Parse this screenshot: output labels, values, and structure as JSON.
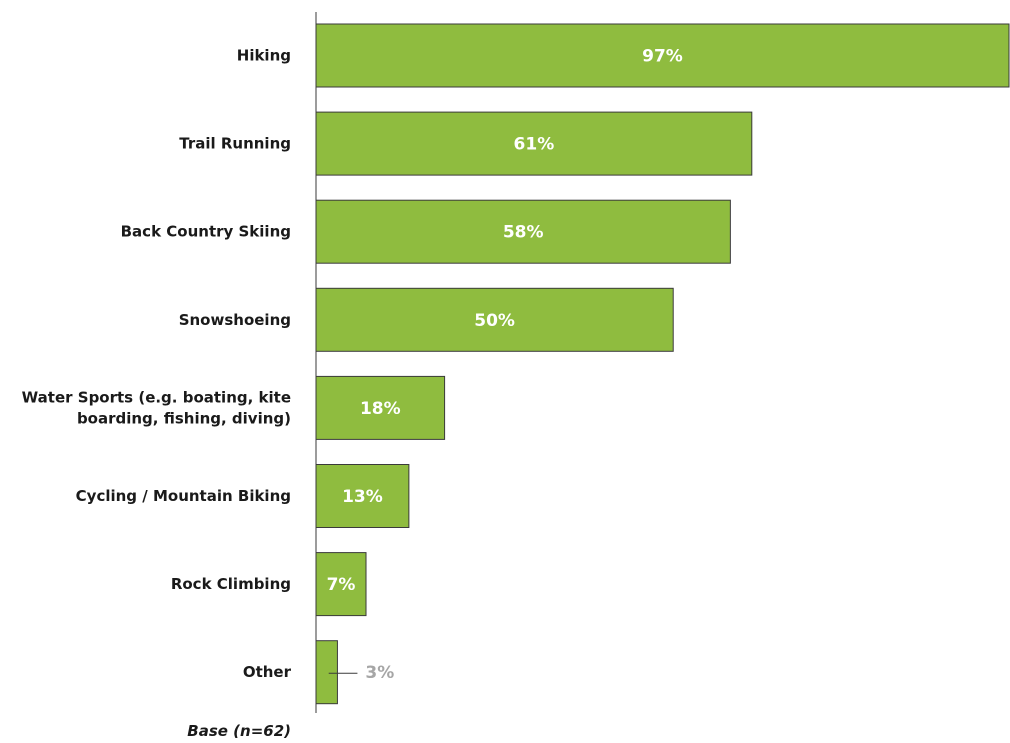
{
  "chart_data": {
    "type": "bar",
    "orientation": "horizontal",
    "categories": [
      [
        "Hiking"
      ],
      [
        "Trail Running"
      ],
      [
        "Back Country Skiing"
      ],
      [
        "Snowshoeing"
      ],
      [
        "Water Sports (e.g. boating, kite",
        "boarding, fishing, diving)"
      ],
      [
        "Cycling / Mountain Biking"
      ],
      [
        "Rock Climbing"
      ],
      [
        "Other"
      ]
    ],
    "values": [
      97,
      61,
      58,
      50,
      18,
      13,
      7,
      3
    ],
    "value_labels": [
      "97%",
      "61%",
      "58%",
      "50%",
      "18%",
      "13%",
      "7%",
      "3%"
    ],
    "xlim": [
      0,
      97
    ],
    "bar_color": "#8fbc3f",
    "bar_border_color": "#3a3a3a",
    "inside_label_color": "#ffffff",
    "outside_label_color": "#a6a6a6",
    "grid": false,
    "legend": "none"
  },
  "footnote": "Base (n=62)"
}
